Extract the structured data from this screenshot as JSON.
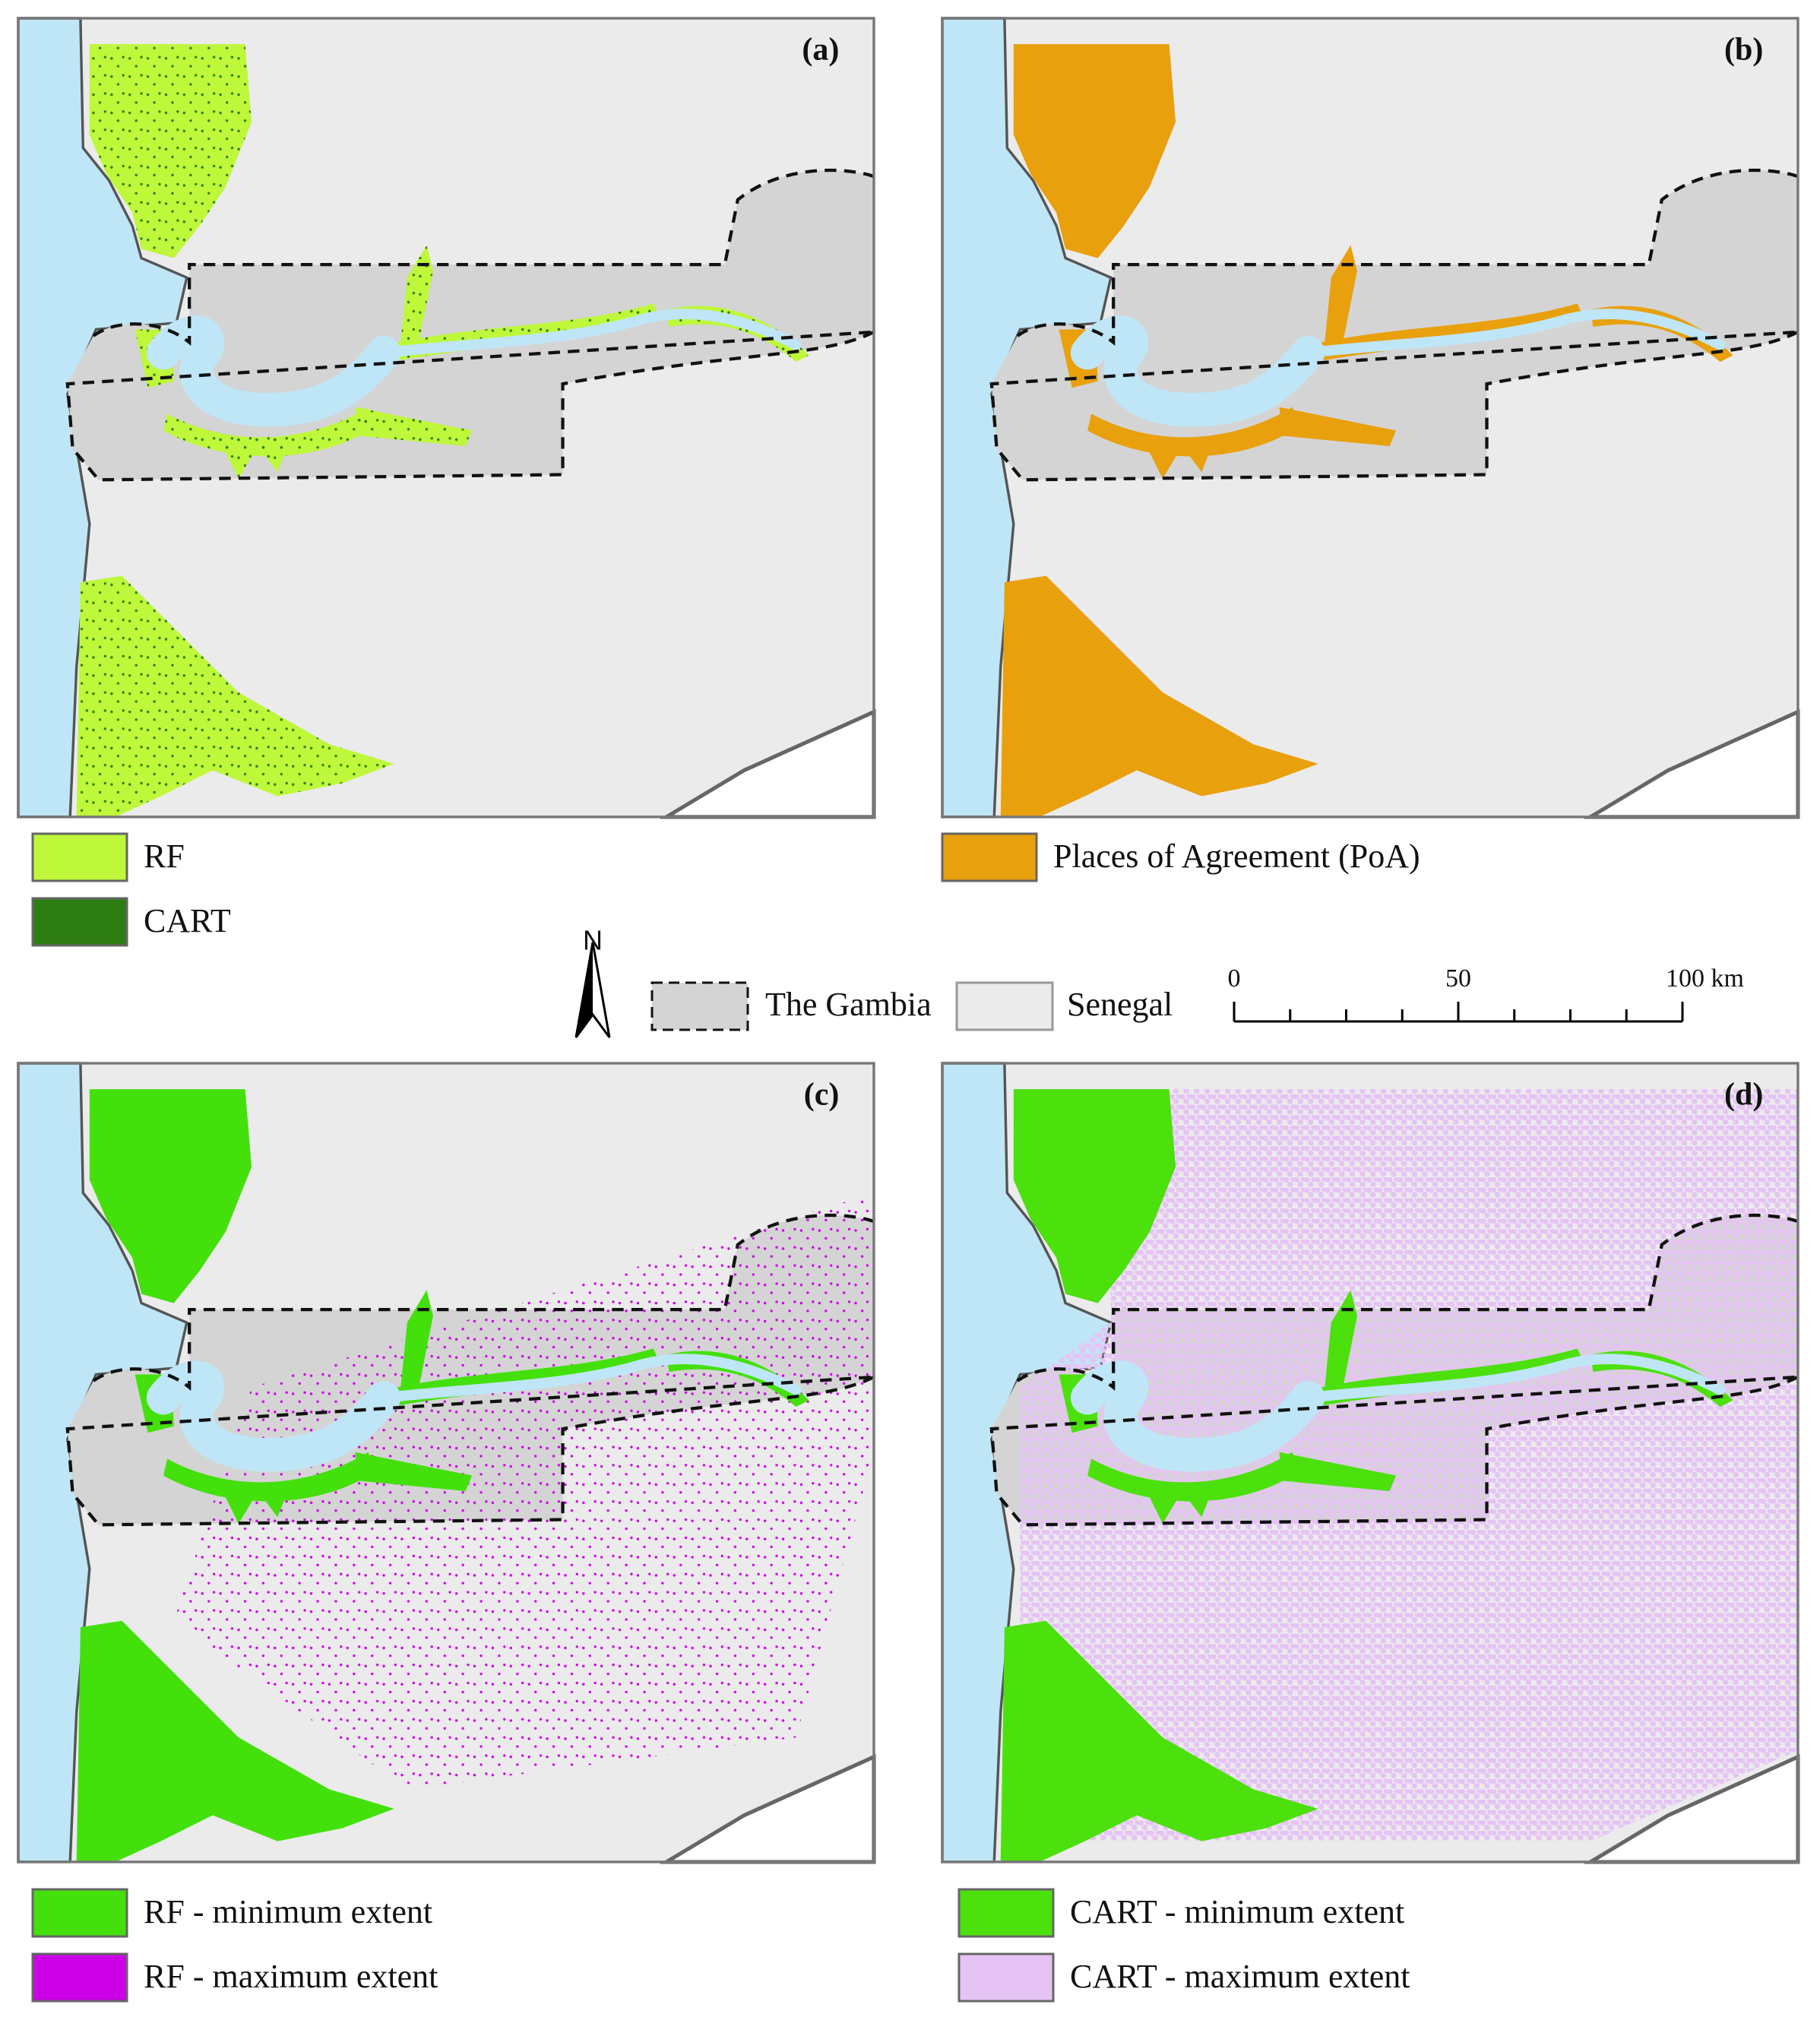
{
  "panels": [
    {
      "label": "(a)",
      "legend": [
        {
          "label": "RF",
          "color": "#bff73a"
        },
        {
          "label": "CART",
          "color": "#2e7d12"
        }
      ]
    },
    {
      "label": "(b)",
      "legend": [
        {
          "label": "Places of Agreement (PoA)",
          "color": "#e8a00c"
        }
      ]
    },
    {
      "label": "(c)",
      "legend": [
        {
          "label": "RF - minimum extent",
          "color": "#44e00c"
        },
        {
          "label": "RF - maximum extent",
          "color": "#cc00e6"
        }
      ]
    },
    {
      "label": "(d)",
      "legend": [
        {
          "label": "CART - minimum extent",
          "color": "#4ce00c"
        },
        {
          "label": "CART - maximum extent",
          "color": "#e6c3f5"
        }
      ]
    }
  ],
  "shared_legend": {
    "north": "N",
    "items": [
      {
        "label": "The Gambia"
      },
      {
        "label": "Senegal"
      }
    ]
  },
  "scale_bar": {
    "labels": [
      "0",
      "50",
      "100 km"
    ]
  }
}
